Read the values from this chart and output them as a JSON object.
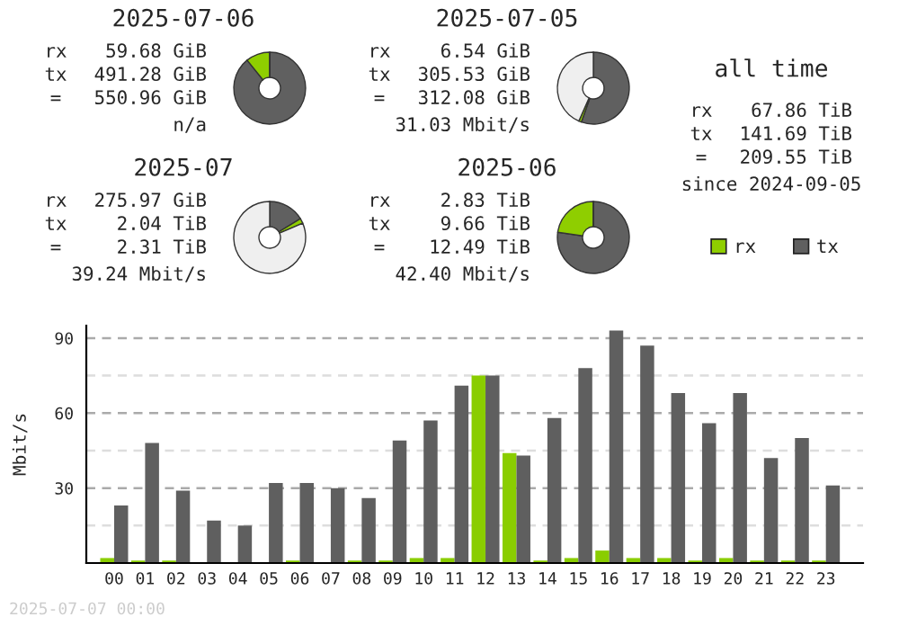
{
  "chart_data": [
    {
      "type": "donut",
      "title": "2025-07-06",
      "categories": [
        null,
        null,
        null
      ],
      "values": [
        89.2,
        10.8,
        0
      ],
      "colors": [
        "#606060",
        "#8fce00",
        "#efefef"
      ],
      "annotations": [
        "rx",
        "59.68 GiB",
        "tx",
        "491.28 GiB",
        "=",
        "550.96 GiB",
        "n/a"
      ]
    },
    {
      "type": "donut",
      "title": "2025-07-05",
      "categories": [
        null,
        null,
        null
      ],
      "values": [
        55.4,
        1.2,
        43.4
      ],
      "colors": [
        "#606060",
        "#8fce00",
        "#efefef"
      ],
      "annotations": [
        "rx",
        "6.54 GiB",
        "tx",
        "305.53 GiB",
        "=",
        "312.08 GiB",
        "31.03 Mbit/s"
      ]
    },
    {
      "type": "donut",
      "title": "2025-07",
      "categories": [
        null,
        null,
        null
      ],
      "values": [
        16.3,
        2.2,
        81.5
      ],
      "colors": [
        "#606060",
        "#8fce00",
        "#efefef"
      ],
      "annotations": [
        "rx",
        "275.97 GiB",
        "tx",
        "2.04 TiB",
        "=",
        "2.31 TiB",
        "39.24 Mbit/s"
      ]
    },
    {
      "type": "donut",
      "title": "2025-06",
      "categories": [
        null,
        null,
        null
      ],
      "values": [
        77.3,
        22.7,
        0
      ],
      "colors": [
        "#606060",
        "#8fce00",
        "#efefef"
      ],
      "annotations": [
        "rx",
        "2.83 TiB",
        "tx",
        "9.66 TiB",
        "=",
        "12.49 TiB",
        "42.40 Mbit/s"
      ]
    },
    {
      "type": "other",
      "title": "all time",
      "annotations": [
        "rx",
        "67.86 TiB",
        "tx",
        "141.69 TiB",
        "=",
        "209.55 TiB",
        "since 2024-09-05"
      ],
      "series": [
        {
          "name": "rx",
          "color": "#8fce00"
        },
        {
          "name": "tx",
          "color": "#606060"
        }
      ],
      "legend": "bottom"
    },
    {
      "type": "bar",
      "categories": [
        "00",
        "01",
        "02",
        "03",
        "04",
        "05",
        "06",
        "07",
        "08",
        "09",
        "10",
        "11",
        "12",
        "13",
        "14",
        "15",
        "16",
        "17",
        "18",
        "19",
        "20",
        "21",
        "22",
        "23"
      ],
      "series": [
        {
          "color": "#8acd00",
          "values": [
            2,
            1,
            1,
            0,
            0,
            0,
            1,
            0,
            1,
            1,
            2,
            2,
            75,
            44,
            1,
            2,
            5,
            2,
            2,
            1,
            2,
            1,
            1,
            1
          ]
        },
        {
          "color": "#5f5f5f",
          "values": [
            23,
            48,
            29,
            17,
            15,
            32,
            32,
            30,
            26,
            49,
            57,
            71,
            75,
            43,
            58,
            78,
            93,
            87,
            68,
            56,
            68,
            42,
            50,
            31
          ]
        }
      ],
      "ylim": [
        0,
        95
      ],
      "yticks": [
        {
          "value": 15,
          "label": null
        },
        30,
        {
          "value": 45,
          "label": null
        },
        60,
        {
          "value": 75,
          "label": null
        },
        90
      ],
      "grid": "y",
      "ylabel": "Mbit/s",
      "annotations": [
        "2025-07-07 00:00"
      ]
    }
  ]
}
